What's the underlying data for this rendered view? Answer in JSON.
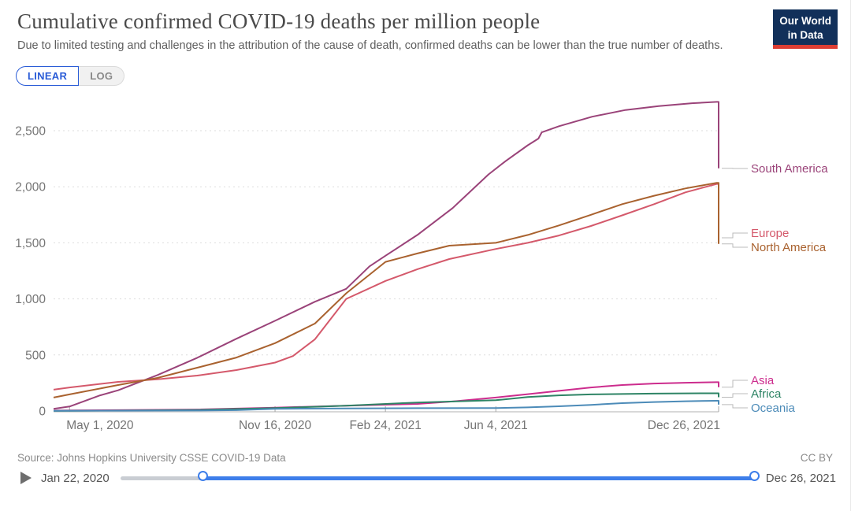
{
  "header": {
    "title": "Cumulative confirmed COVID-19 deaths per million people",
    "subtitle": "Due to limited testing and challenges in the attribution of the cause of death, confirmed deaths can be lower than the true number of deaths.",
    "logo_line1": "Our World",
    "logo_line2": "in Data"
  },
  "controls": {
    "linear_label": "LINEAR",
    "log_label": "LOG"
  },
  "theme": {
    "accent": "#2A5CD7",
    "slider_blue": "#3D7EEA",
    "slider_track": "#C9CDD3",
    "logo_bg": "#12305A",
    "logo_stripe": "#DC3D33",
    "grid": "#DDDDDD",
    "axis": "#CBCBCB",
    "tick": "#A5A5A5",
    "text_axis": "#757575",
    "connector": "#BBBBBB"
  },
  "chart_data": {
    "type": "line",
    "title": "Cumulative confirmed COVID-19 deaths per million people",
    "xlabel": "",
    "ylabel": "",
    "ylim": [
      0,
      2810
    ],
    "grid": "dashed-horizontal",
    "legend_position": "right-end-of-lines",
    "y_ticks": [
      {
        "v": 0,
        "label": "0"
      },
      {
        "v": 500,
        "label": "500"
      },
      {
        "v": 1000,
        "label": "1,000"
      },
      {
        "v": 1500,
        "label": "1,500"
      },
      {
        "v": 2000,
        "label": "2,000"
      },
      {
        "v": 2500,
        "label": "2,500"
      }
    ],
    "x_ticks": [
      {
        "label": "May 1, 2020",
        "f": 0.024,
        "anchor": "start"
      },
      {
        "label": "Nov 16, 2020",
        "f": 0.333,
        "anchor": "middle"
      },
      {
        "label": "Feb 24, 2021",
        "f": 0.499,
        "anchor": "middle"
      },
      {
        "label": "Jun 4, 2021",
        "f": 0.665,
        "anchor": "middle"
      },
      {
        "label": "Dec 26, 2021",
        "f": 1.0,
        "anchor": "end"
      }
    ],
    "series": [
      {
        "name": "South America",
        "color": "#9A4379",
        "label_y": 97,
        "peak_value": 2757,
        "end_value": 2165,
        "points": [
          [
            0,
            20
          ],
          [
            0.024,
            40
          ],
          [
            0.07,
            140
          ],
          [
            0.097,
            185
          ],
          [
            0.156,
            320
          ],
          [
            0.216,
            475
          ],
          [
            0.275,
            645
          ],
          [
            0.333,
            805
          ],
          [
            0.393,
            975
          ],
          [
            0.44,
            1090
          ],
          [
            0.475,
            1290
          ],
          [
            0.499,
            1385
          ],
          [
            0.547,
            1570
          ],
          [
            0.6,
            1810
          ],
          [
            0.654,
            2110
          ],
          [
            0.68,
            2230
          ],
          [
            0.713,
            2370
          ],
          [
            0.729,
            2430
          ],
          [
            0.734,
            2485
          ],
          [
            0.76,
            2540
          ],
          [
            0.81,
            2625
          ],
          [
            0.86,
            2685
          ],
          [
            0.91,
            2720
          ],
          [
            0.96,
            2745
          ],
          [
            0.997,
            2757
          ],
          [
            1,
            2757
          ],
          [
            1,
            2165
          ]
        ]
      },
      {
        "name": "Europe",
        "color": "#D4596B",
        "label_y": 179,
        "peak_value": 2025,
        "end_value": 1545,
        "points": [
          [
            0,
            190
          ],
          [
            0.024,
            210
          ],
          [
            0.097,
            260
          ],
          [
            0.156,
            282
          ],
          [
            0.216,
            316
          ],
          [
            0.275,
            365
          ],
          [
            0.333,
            432
          ],
          [
            0.36,
            490
          ],
          [
            0.393,
            640
          ],
          [
            0.44,
            1000
          ],
          [
            0.499,
            1160
          ],
          [
            0.547,
            1265
          ],
          [
            0.595,
            1355
          ],
          [
            0.665,
            1445
          ],
          [
            0.713,
            1500
          ],
          [
            0.76,
            1565
          ],
          [
            0.808,
            1650
          ],
          [
            0.855,
            1745
          ],
          [
            0.903,
            1845
          ],
          [
            0.95,
            1950
          ],
          [
            0.997,
            2025
          ],
          [
            1,
            2025
          ],
          [
            1,
            1545
          ]
        ]
      },
      {
        "name": "North America",
        "color": "#A9622F",
        "label_y": 197,
        "peak_value": 2035,
        "end_value": 1490,
        "points": [
          [
            0,
            120
          ],
          [
            0.024,
            148
          ],
          [
            0.097,
            232
          ],
          [
            0.156,
            295
          ],
          [
            0.216,
            386
          ],
          [
            0.275,
            477
          ],
          [
            0.333,
            605
          ],
          [
            0.393,
            780
          ],
          [
            0.44,
            1050
          ],
          [
            0.499,
            1330
          ],
          [
            0.547,
            1405
          ],
          [
            0.595,
            1475
          ],
          [
            0.665,
            1500
          ],
          [
            0.713,
            1570
          ],
          [
            0.76,
            1655
          ],
          [
            0.808,
            1750
          ],
          [
            0.855,
            1845
          ],
          [
            0.903,
            1920
          ],
          [
            0.95,
            1985
          ],
          [
            0.997,
            2035
          ],
          [
            1,
            2035
          ],
          [
            1,
            1490
          ]
        ]
      },
      {
        "name": "Asia",
        "color": "#CC2C8D",
        "label_y": 366,
        "peak_value": 257,
        "end_value": 212,
        "points": [
          [
            0,
            4
          ],
          [
            0.097,
            8
          ],
          [
            0.216,
            13
          ],
          [
            0.333,
            30
          ],
          [
            0.44,
            48
          ],
          [
            0.547,
            63
          ],
          [
            0.6,
            85
          ],
          [
            0.665,
            120
          ],
          [
            0.713,
            150
          ],
          [
            0.76,
            180
          ],
          [
            0.808,
            210
          ],
          [
            0.855,
            232
          ],
          [
            0.903,
            245
          ],
          [
            0.95,
            252
          ],
          [
            0.997,
            257
          ],
          [
            1,
            257
          ],
          [
            1,
            212
          ]
        ]
      },
      {
        "name": "Africa",
        "color": "#2E8465",
        "label_y": 383,
        "peak_value": 158,
        "end_value": 123,
        "points": [
          [
            0,
            1
          ],
          [
            0.097,
            4
          ],
          [
            0.216,
            10
          ],
          [
            0.333,
            26
          ],
          [
            0.44,
            47
          ],
          [
            0.547,
            76
          ],
          [
            0.665,
            96
          ],
          [
            0.713,
            125
          ],
          [
            0.76,
            140
          ],
          [
            0.808,
            148
          ],
          [
            0.855,
            152
          ],
          [
            0.903,
            155
          ],
          [
            0.95,
            157
          ],
          [
            0.997,
            158
          ],
          [
            1,
            158
          ],
          [
            1,
            123
          ]
        ]
      },
      {
        "name": "Oceania",
        "color": "#4C8BB8",
        "label_y": 401,
        "peak_value": 91,
        "end_value": 57,
        "points": [
          [
            0,
            2
          ],
          [
            0.097,
            3
          ],
          [
            0.216,
            4
          ],
          [
            0.275,
            8
          ],
          [
            0.333,
            20
          ],
          [
            0.44,
            23
          ],
          [
            0.547,
            25
          ],
          [
            0.665,
            27
          ],
          [
            0.713,
            32
          ],
          [
            0.76,
            42
          ],
          [
            0.808,
            55
          ],
          [
            0.855,
            70
          ],
          [
            0.903,
            80
          ],
          [
            0.95,
            87
          ],
          [
            0.997,
            91
          ],
          [
            1,
            91
          ],
          [
            1,
            57
          ]
        ]
      }
    ]
  },
  "footer": {
    "source": "Source: Johns Hopkins University CSSE COVID-19 Data",
    "license": "CC BY"
  },
  "timeline": {
    "play_icon": "play-triangle",
    "start_label": "Jan 22, 2020",
    "end_label": "Dec 26, 2021",
    "handle_fraction": 0.135
  }
}
